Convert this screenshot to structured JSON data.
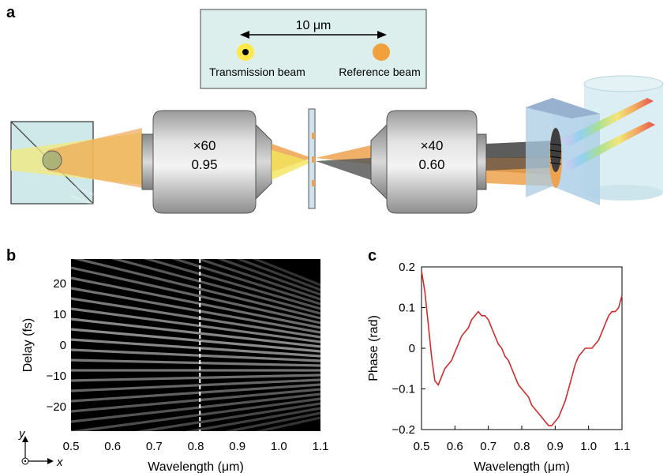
{
  "panel_a": {
    "letter": "a",
    "inset": {
      "distance_label": "10 μm",
      "transmission_label": "Transmission beam",
      "reference_label": "Reference beam"
    },
    "objective_left": {
      "mag": "×60",
      "na": "0.95"
    },
    "objective_right": {
      "mag": "×40",
      "na": "0.60"
    },
    "colors": {
      "cube": "#cfe8ea",
      "beam_yellow": "#f3e55a",
      "beam_orange": "#eea24e",
      "beam_grey": "#5a5a5a",
      "objective": "#bdbdbd",
      "cylinder": "#d7ecf2",
      "ref_dot": "#f0a13c",
      "trans_dot": "#ffe94a"
    }
  },
  "panel_b": {
    "letter": "b",
    "ylabel": "Delay (fs)",
    "xlabel": "Wavelength (μm)",
    "x_ticks": [
      "0.5",
      "0.6",
      "0.7",
      "0.8",
      "0.9",
      "1.0",
      "1.1"
    ],
    "y_ticks": [
      "20",
      "10",
      "0",
      "−10",
      "−20"
    ],
    "xlim": [
      0.5,
      1.1
    ],
    "ylim": [
      -28,
      28
    ],
    "marker_wavelength": 0.81,
    "axes": {
      "y": "y",
      "x": "x"
    }
  },
  "chart_data": {
    "type": "line",
    "title": "",
    "xlabel": "Wavelength (μm)",
    "ylabel": "Phase (rad)",
    "xlim": [
      0.5,
      1.1
    ],
    "ylim": [
      -0.2,
      0.2
    ],
    "x_ticks": [
      "0.5",
      "0.6",
      "0.7",
      "0.8",
      "0.9",
      "1.0",
      "1.1"
    ],
    "y_ticks": [
      "0.2",
      "0.1",
      "0",
      "−0.1",
      "−0.2"
    ],
    "color": "#d42a2a",
    "series": [
      {
        "x": [
          0.5,
          0.51,
          0.52,
          0.53,
          0.54,
          0.55,
          0.56,
          0.57,
          0.58,
          0.59,
          0.6,
          0.61,
          0.62,
          0.63,
          0.64,
          0.65,
          0.66,
          0.67,
          0.68,
          0.69,
          0.7,
          0.71,
          0.72,
          0.73,
          0.74,
          0.75,
          0.76,
          0.77,
          0.78,
          0.79,
          0.8,
          0.81,
          0.82,
          0.83,
          0.84,
          0.85,
          0.86,
          0.87,
          0.88,
          0.89,
          0.9,
          0.91,
          0.92,
          0.93,
          0.94,
          0.95,
          0.96,
          0.97,
          0.98,
          0.99,
          1.0,
          1.01,
          1.02,
          1.03,
          1.04,
          1.05,
          1.06,
          1.07,
          1.08,
          1.09,
          1.1
        ],
        "y": [
          0.19,
          0.14,
          0.06,
          -0.02,
          -0.08,
          -0.09,
          -0.07,
          -0.05,
          -0.04,
          -0.03,
          -0.01,
          0.01,
          0.03,
          0.04,
          0.05,
          0.07,
          0.08,
          0.09,
          0.08,
          0.08,
          0.07,
          0.05,
          0.03,
          0.01,
          0.0,
          -0.02,
          -0.03,
          -0.05,
          -0.07,
          -0.09,
          -0.1,
          -0.11,
          -0.12,
          -0.14,
          -0.15,
          -0.16,
          -0.17,
          -0.18,
          -0.19,
          -0.19,
          -0.18,
          -0.17,
          -0.15,
          -0.13,
          -0.1,
          -0.07,
          -0.04,
          -0.02,
          -0.01,
          0.0,
          0.0,
          0.0,
          0.01,
          0.02,
          0.04,
          0.06,
          0.08,
          0.09,
          0.09,
          0.1,
          0.13
        ]
      }
    ]
  },
  "panel_c": {
    "letter": "c"
  }
}
